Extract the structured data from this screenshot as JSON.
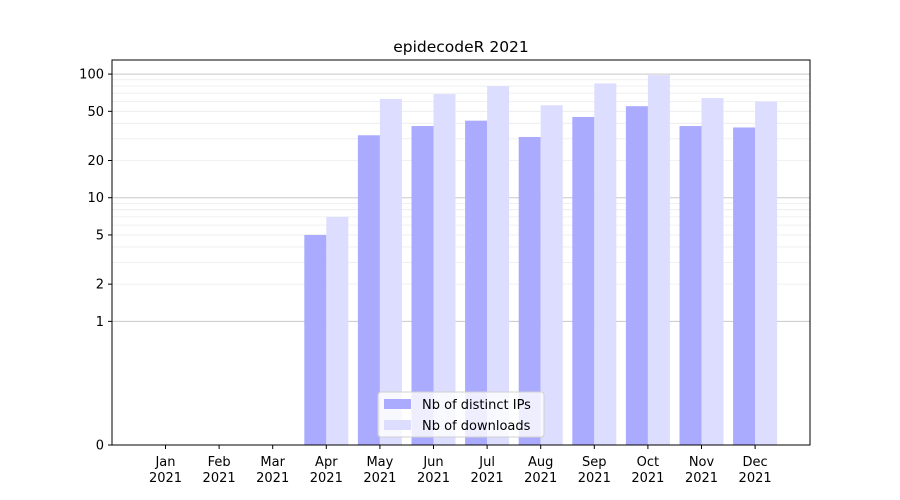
{
  "chart_data": {
    "type": "bar",
    "title": "epidecodeR 2021",
    "xlabel": "",
    "ylabel": "",
    "yscale": "symlog",
    "ylim": [
      0,
      130
    ],
    "grid": "horizontal (major and minor)",
    "legend_position": "bottom-center",
    "categories": [
      "Jan\n2021",
      "Feb\n2021",
      "Mar\n2021",
      "Apr\n2021",
      "May\n2021",
      "Jun\n2021",
      "Jul\n2021",
      "Aug\n2021",
      "Sep\n2021",
      "Oct\n2021",
      "Nov\n2021",
      "Dec\n2021"
    ],
    "yticks": [
      0,
      1,
      2,
      5,
      10,
      20,
      50,
      100
    ],
    "series": [
      {
        "name": "Nb of distinct IPs",
        "color": "#aaaaff",
        "values": [
          0,
          0,
          0,
          5,
          32,
          38,
          42,
          31,
          45,
          55,
          38,
          37
        ]
      },
      {
        "name": "Nb of downloads",
        "color": "#ddddff",
        "values": [
          0,
          0,
          0,
          7,
          63,
          69,
          80,
          56,
          84,
          98,
          64,
          60
        ]
      }
    ]
  }
}
